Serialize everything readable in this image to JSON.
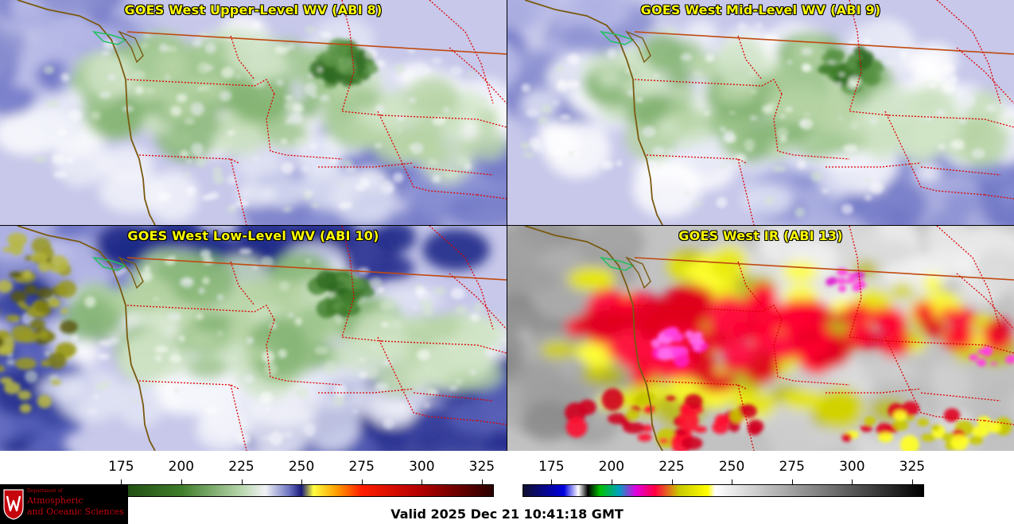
{
  "panels": [
    {
      "title": "GOES West Upper-Level WV (ABI 8)",
      "palette": "wv",
      "intensity": 0.62
    },
    {
      "title": "GOES West Mid-Level WV (ABI 9)",
      "palette": "wv",
      "intensity": 0.5
    },
    {
      "title": "GOES West Low-Level WV (ABI 10)",
      "palette": "wv-low",
      "intensity": 0.38
    },
    {
      "title": "GOES West IR (ABI 13)",
      "palette": "ir",
      "intensity": 0.5
    }
  ],
  "colorbars": [
    {
      "name": "wv-colorbar",
      "ticks": [
        "175",
        "200",
        "225",
        "250",
        "275",
        "300",
        "325"
      ],
      "tick_values": [
        175,
        200,
        225,
        250,
        275,
        300,
        325
      ],
      "range": [
        163,
        330
      ],
      "stops": [
        {
          "v": 163,
          "c": "#111111"
        },
        {
          "v": 175,
          "c": "#1f4a10"
        },
        {
          "v": 200,
          "c": "#3f7d2a"
        },
        {
          "v": 225,
          "c": "#b8d7ad"
        },
        {
          "v": 235,
          "c": "#f2f2f6"
        },
        {
          "v": 245,
          "c": "#6b72c0"
        },
        {
          "v": 250,
          "c": "#1a1a7a"
        },
        {
          "v": 255,
          "c": "#ffff40"
        },
        {
          "v": 265,
          "c": "#ff9a00"
        },
        {
          "v": 275,
          "c": "#ff1e00"
        },
        {
          "v": 300,
          "c": "#b00000"
        },
        {
          "v": 330,
          "c": "#2a0000"
        }
      ]
    },
    {
      "name": "ir-colorbar",
      "ticks": [
        "175",
        "200",
        "225",
        "250",
        "275",
        "300",
        "325"
      ],
      "tick_values": [
        175,
        200,
        225,
        250,
        275,
        300,
        325
      ],
      "range": [
        163,
        330
      ],
      "stops": [
        {
          "v": 163,
          "c": "#101030"
        },
        {
          "v": 180,
          "c": "#0000e0"
        },
        {
          "v": 186,
          "c": "#ffffff"
        },
        {
          "v": 190,
          "c": "#000000"
        },
        {
          "v": 195,
          "c": "#00c000"
        },
        {
          "v": 203,
          "c": "#00a0c0"
        },
        {
          "v": 210,
          "c": "#e000e0"
        },
        {
          "v": 218,
          "c": "#ff0040"
        },
        {
          "v": 228,
          "c": "#c8c800"
        },
        {
          "v": 240,
          "c": "#ffff00"
        },
        {
          "v": 243,
          "c": "#ffffff"
        },
        {
          "v": 330,
          "c": "#000000"
        }
      ]
    }
  ],
  "logo": {
    "dept": "Department of",
    "line1": "Atmospheric",
    "line2": "and Oceanic Sciences",
    "seal_letter": "W"
  },
  "valid_time": "Valid 2025 Dec 21 10:41:18 GMT",
  "colors": {
    "title": "#ffff00",
    "border": "#dd0000",
    "coast": "#7a5a10"
  }
}
